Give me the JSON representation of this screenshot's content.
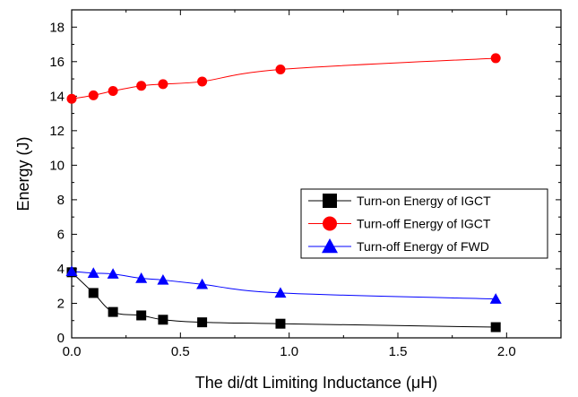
{
  "chart_data": {
    "type": "line",
    "title": "",
    "xlabel": "The di/dt Limiting Inductance (μH)",
    "ylabel": "Energy (J)",
    "xlim": [
      0,
      2.25
    ],
    "ylim": [
      0,
      19
    ],
    "xticks": [
      0.0,
      0.5,
      1.0,
      1.5,
      2.0
    ],
    "xtick_labels": [
      "0.0",
      "0.5",
      "1.0",
      "1.5",
      "2.0"
    ],
    "yticks": [
      0,
      2,
      4,
      6,
      8,
      10,
      12,
      14,
      16,
      18
    ],
    "ytick_labels": [
      "0",
      "2",
      "4",
      "6",
      "8",
      "10",
      "12",
      "14",
      "16",
      "18"
    ],
    "grid": false,
    "legend_position": "right-middle",
    "series": [
      {
        "name": "Turn-on Energy of IGCT",
        "color": "#000000",
        "marker": "square",
        "x": [
          0.0,
          0.1,
          0.19,
          0.32,
          0.42,
          0.6,
          0.96,
          1.95
        ],
        "y": [
          3.8,
          2.6,
          1.5,
          1.3,
          1.05,
          0.9,
          0.82,
          0.62
        ]
      },
      {
        "name": "Turn-off Energy of IGCT",
        "color": "#ff0000",
        "marker": "circle",
        "x": [
          0.0,
          0.1,
          0.19,
          0.32,
          0.42,
          0.6,
          0.96,
          1.95
        ],
        "y": [
          13.85,
          14.05,
          14.3,
          14.6,
          14.7,
          14.85,
          15.55,
          16.2
        ]
      },
      {
        "name": "Turn-off Energy of FWD",
        "color": "#0000ff",
        "marker": "triangle",
        "x": [
          0.0,
          0.1,
          0.19,
          0.32,
          0.42,
          0.6,
          0.96,
          1.95
        ],
        "y": [
          3.85,
          3.75,
          3.7,
          3.45,
          3.35,
          3.1,
          2.6,
          2.25
        ]
      }
    ]
  }
}
